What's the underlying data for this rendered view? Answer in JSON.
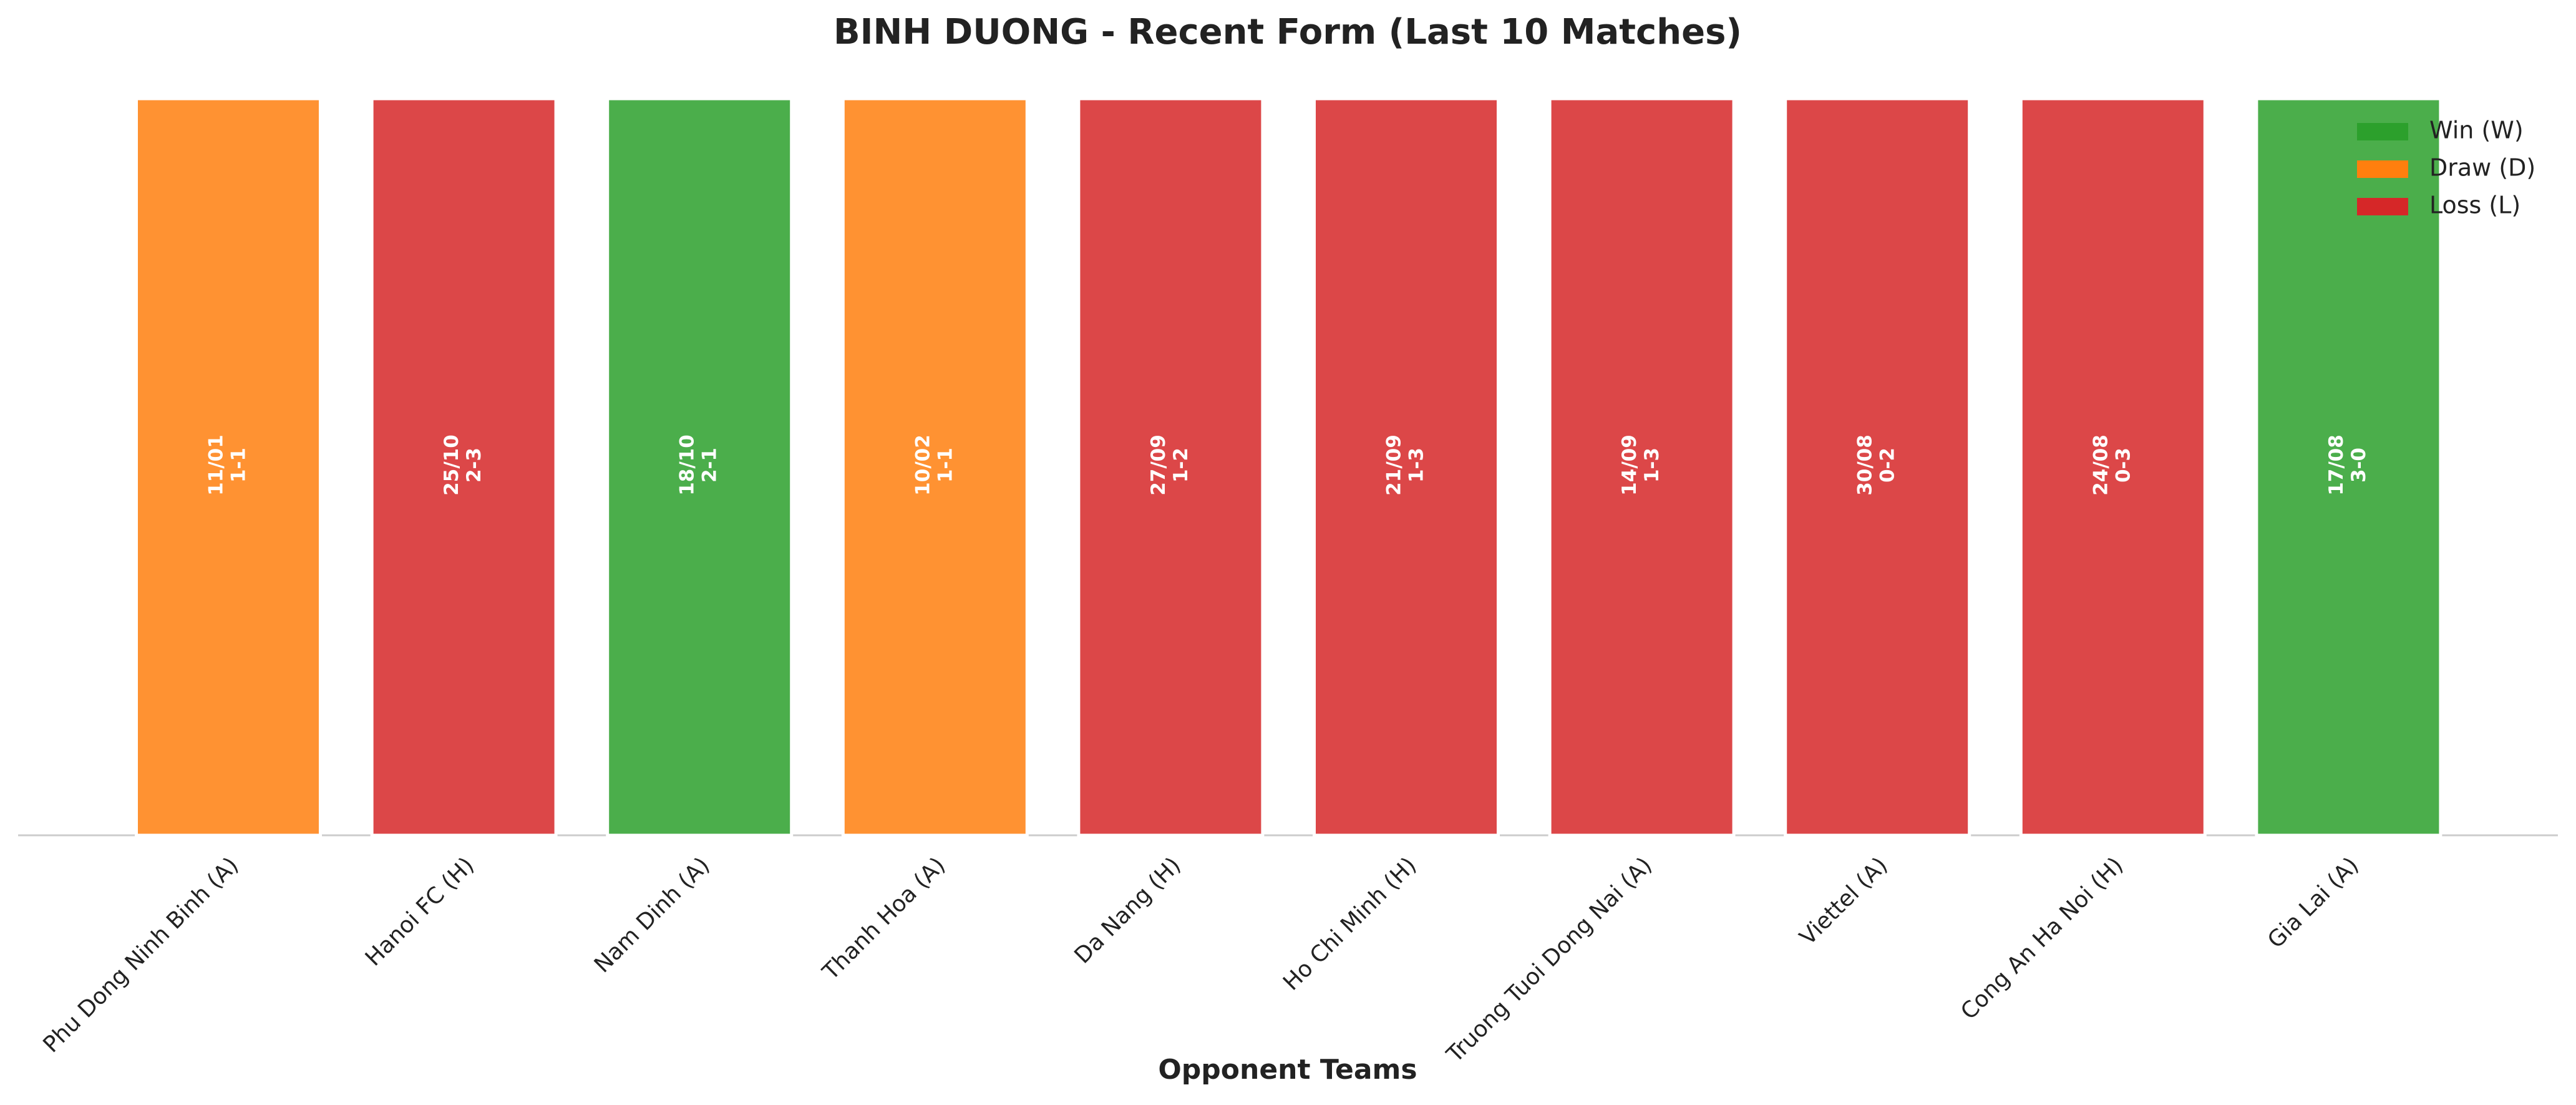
{
  "chart_data": {
    "type": "bar",
    "title": "BINH DUONG - Recent Form (Last 10 Matches)",
    "x_label": "Opponent Teams",
    "categories": [
      "Phu Dong Ninh Binh (A)",
      "Hanoi FC (H)",
      "Nam Dinh (A)",
      "Thanh Hoa (A)",
      "Da Nang (H)",
      "Ho Chi Minh (H)",
      "Truong Tuoi Dong Nai (A)",
      "Viettel (A)",
      "Cong An Ha Noi (H)",
      "Gia Lai (A)"
    ],
    "dates": [
      "11/01",
      "25/10",
      "18/10",
      "10/02",
      "27/09",
      "21/09",
      "14/09",
      "30/08",
      "24/08",
      "17/08"
    ],
    "scores": [
      "1-1",
      "2-3",
      "2-1",
      "1-1",
      "1-2",
      "1-3",
      "1-3",
      "0-2",
      "0-3",
      "3-0"
    ],
    "series": [
      {
        "name": "Win (W)",
        "color": "#2ca02c",
        "values": [
          null,
          null,
          1,
          null,
          null,
          null,
          null,
          null,
          null,
          1
        ]
      },
      {
        "name": "Draw (D)",
        "color": "#ff7f0e",
        "values": [
          1,
          null,
          null,
          1,
          null,
          null,
          null,
          null,
          null,
          null
        ]
      },
      {
        "name": "Loss (L)",
        "color": "#d62728",
        "values": [
          null,
          1,
          null,
          null,
          1,
          1,
          1,
          1,
          1,
          null
        ]
      }
    ],
    "ylim": [
      0,
      1
    ],
    "legend": "upper right"
  }
}
